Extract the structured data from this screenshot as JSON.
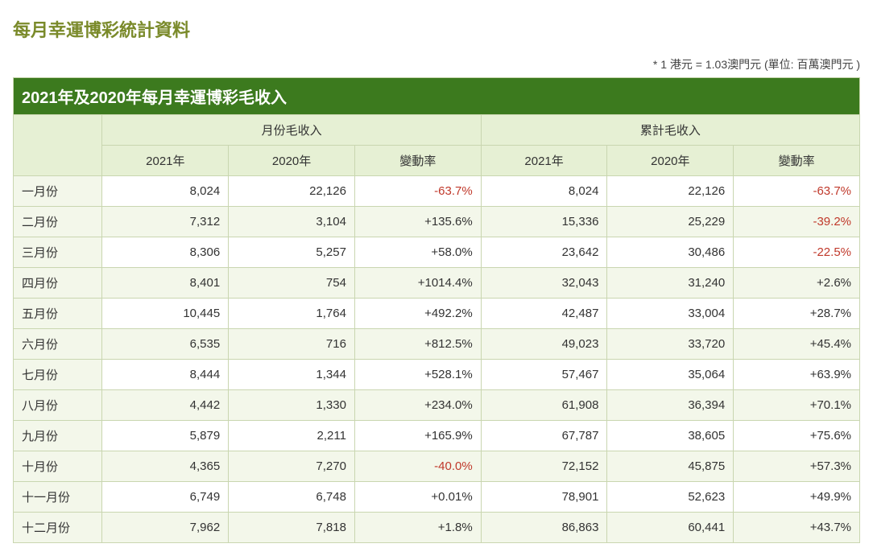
{
  "title": "每月幸運博彩統計資料",
  "note": "* 1 港元 = 1.03澳門元 (單位: 百萬澳門元  )",
  "table": {
    "banner": "2021年及2020年每月幸運博彩毛收入",
    "group_monthly": "月份毛收入",
    "group_cumulative": "累計毛收入",
    "col_2021": "2021年",
    "col_2020": "2020年",
    "col_change": "變動率",
    "rows": [
      {
        "month": "一月份",
        "m2021": "8,024",
        "m2020": "22,126",
        "mchg": "-63.7%",
        "mneg": true,
        "c2021": "8,024",
        "c2020": "22,126",
        "cchg": "-63.7%",
        "cneg": true
      },
      {
        "month": "二月份",
        "m2021": "7,312",
        "m2020": "3,104",
        "mchg": "+135.6%",
        "mneg": false,
        "c2021": "15,336",
        "c2020": "25,229",
        "cchg": "-39.2%",
        "cneg": true
      },
      {
        "month": "三月份",
        "m2021": "8,306",
        "m2020": "5,257",
        "mchg": "+58.0%",
        "mneg": false,
        "c2021": "23,642",
        "c2020": "30,486",
        "cchg": "-22.5%",
        "cneg": true
      },
      {
        "month": "四月份",
        "m2021": "8,401",
        "m2020": "754",
        "mchg": "+1014.4%",
        "mneg": false,
        "c2021": "32,043",
        "c2020": "31,240",
        "cchg": "+2.6%",
        "cneg": false
      },
      {
        "month": "五月份",
        "m2021": "10,445",
        "m2020": "1,764",
        "mchg": "+492.2%",
        "mneg": false,
        "c2021": "42,487",
        "c2020": "33,004",
        "cchg": "+28.7%",
        "cneg": false
      },
      {
        "month": "六月份",
        "m2021": "6,535",
        "m2020": "716",
        "mchg": "+812.5%",
        "mneg": false,
        "c2021": "49,023",
        "c2020": "33,720",
        "cchg": "+45.4%",
        "cneg": false
      },
      {
        "month": "七月份",
        "m2021": "8,444",
        "m2020": "1,344",
        "mchg": "+528.1%",
        "mneg": false,
        "c2021": "57,467",
        "c2020": "35,064",
        "cchg": "+63.9%",
        "cneg": false
      },
      {
        "month": "八月份",
        "m2021": "4,442",
        "m2020": "1,330",
        "mchg": "+234.0%",
        "mneg": false,
        "c2021": "61,908",
        "c2020": "36,394",
        "cchg": "+70.1%",
        "cneg": false
      },
      {
        "month": "九月份",
        "m2021": "5,879",
        "m2020": "2,211",
        "mchg": "+165.9%",
        "mneg": false,
        "c2021": "67,787",
        "c2020": "38,605",
        "cchg": "+75.6%",
        "cneg": false
      },
      {
        "month": "十月份",
        "m2021": "4,365",
        "m2020": "7,270",
        "mchg": "-40.0%",
        "mneg": true,
        "c2021": "72,152",
        "c2020": "45,875",
        "cchg": "+57.3%",
        "cneg": false
      },
      {
        "month": "十一月份",
        "m2021": "6,749",
        "m2020": "6,748",
        "mchg": "+0.01%",
        "mneg": false,
        "c2021": "78,901",
        "c2020": "52,623",
        "cchg": "+49.9%",
        "cneg": false
      },
      {
        "month": "十二月份",
        "m2021": "7,962",
        "m2020": "7,818",
        "mchg": "+1.8%",
        "mneg": false,
        "c2021": "86,863",
        "c2020": "60,441",
        "cchg": "+43.7%",
        "cneg": false
      }
    ]
  },
  "style": {
    "title_color": "#7a8a2a",
    "banner_bg": "#3c7a1e",
    "header_bg": "#e6f0d4",
    "row_alt_bg": "#f3f7ea",
    "border_color": "#c9d6b0",
    "neg_color": "#c0392b",
    "text_color": "#333333",
    "font_size_title": 22,
    "font_size_banner": 20,
    "font_size_cell": 15
  }
}
